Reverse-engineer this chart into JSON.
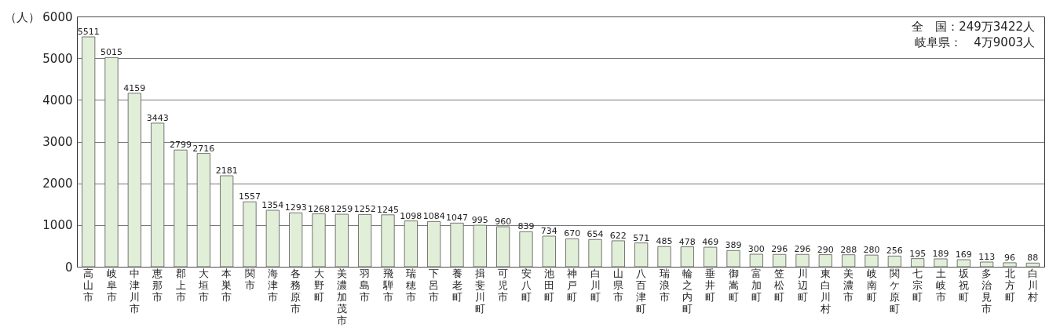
{
  "chart_data": {
    "type": "bar",
    "ylabel": "（人）",
    "categories": [
      "高山市",
      "岐阜市",
      "中津川市",
      "恵那市",
      "郡上市",
      "大垣市",
      "本巣市",
      "関市",
      "海津市",
      "各務原市",
      "大野町",
      "美濃加茂市",
      "羽島市",
      "飛騨市",
      "瑞穂市",
      "下呂市",
      "養老町",
      "揖斐川町",
      "可児市",
      "安八町",
      "池田町",
      "神戸町",
      "白川町",
      "山県市",
      "八百津町",
      "瑞浪市",
      "輪之内町",
      "垂井町",
      "御嵩町",
      "富加町",
      "笠松町",
      "川辺町",
      "東白川村",
      "美濃市",
      "岐南町",
      "関ケ原町",
      "七宗町",
      "土岐市",
      "坂祝町",
      "多治見市",
      "北方町",
      "白川村"
    ],
    "values": [
      5511,
      5015,
      4159,
      3443,
      2799,
      2716,
      2181,
      1557,
      1354,
      1293,
      1268,
      1259,
      1252,
      1245,
      1098,
      1084,
      1047,
      995,
      960,
      839,
      734,
      670,
      654,
      622,
      571,
      485,
      478,
      469,
      389,
      300,
      296,
      296,
      290,
      288,
      280,
      256,
      195,
      189,
      169,
      113,
      96,
      88
    ],
    "color": "#e2efd8",
    "ylim": [
      0,
      6000
    ],
    "yticks": [
      0,
      1000,
      2000,
      3000,
      4000,
      5000,
      6000
    ],
    "grid": "y",
    "data_labels": true,
    "annotations": [
      "全　国：249万3422人",
      "岐阜県：　4万9003人"
    ]
  }
}
